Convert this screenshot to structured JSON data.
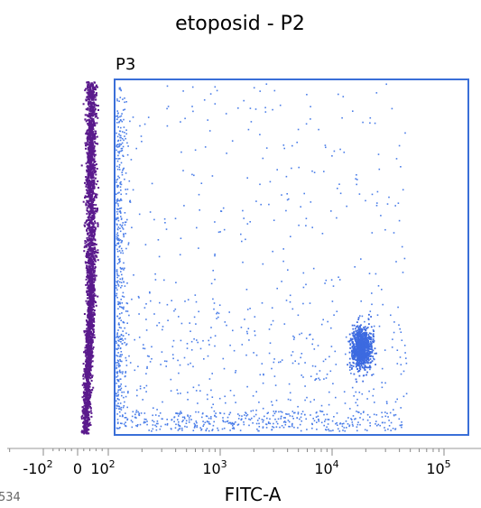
{
  "chart_data": {
    "type": "scatter",
    "title": "etoposid - P2",
    "xlabel": "FITC-A",
    "ylabel": "",
    "x_scale": "biexponential (log with linear region around 0)",
    "x_ticks": [
      {
        "value": -100,
        "base": "-10",
        "exp": "2"
      },
      {
        "value": 0,
        "base": "0",
        "exp": ""
      },
      {
        "value": 100,
        "base": "10",
        "exp": "2"
      },
      {
        "value": 1000,
        "base": "10",
        "exp": "3"
      },
      {
        "value": 10000,
        "base": "10",
        "exp": "4"
      },
      {
        "value": 100000,
        "base": "10",
        "exp": "5"
      }
    ],
    "xlim": [
      -250,
      150000
    ],
    "gate": {
      "name": "P3",
      "x_min": 110,
      "x_max": 150000,
      "color": "#3a6fd8"
    },
    "populations": [
      {
        "name": "outside gate (negative)",
        "color": "#5a1a8c",
        "x_center": -20,
        "share": "majority, dense column left of gate"
      },
      {
        "name": "inside gate (scattered)",
        "color": "#4a7de8",
        "x_range": [
          110,
          150000
        ]
      },
      {
        "name": "inside gate (positive cluster)",
        "color": "#3c6ae0",
        "x_center": 20000
      }
    ],
    "grid": false,
    "legend": "none"
  },
  "corner_text": "534"
}
